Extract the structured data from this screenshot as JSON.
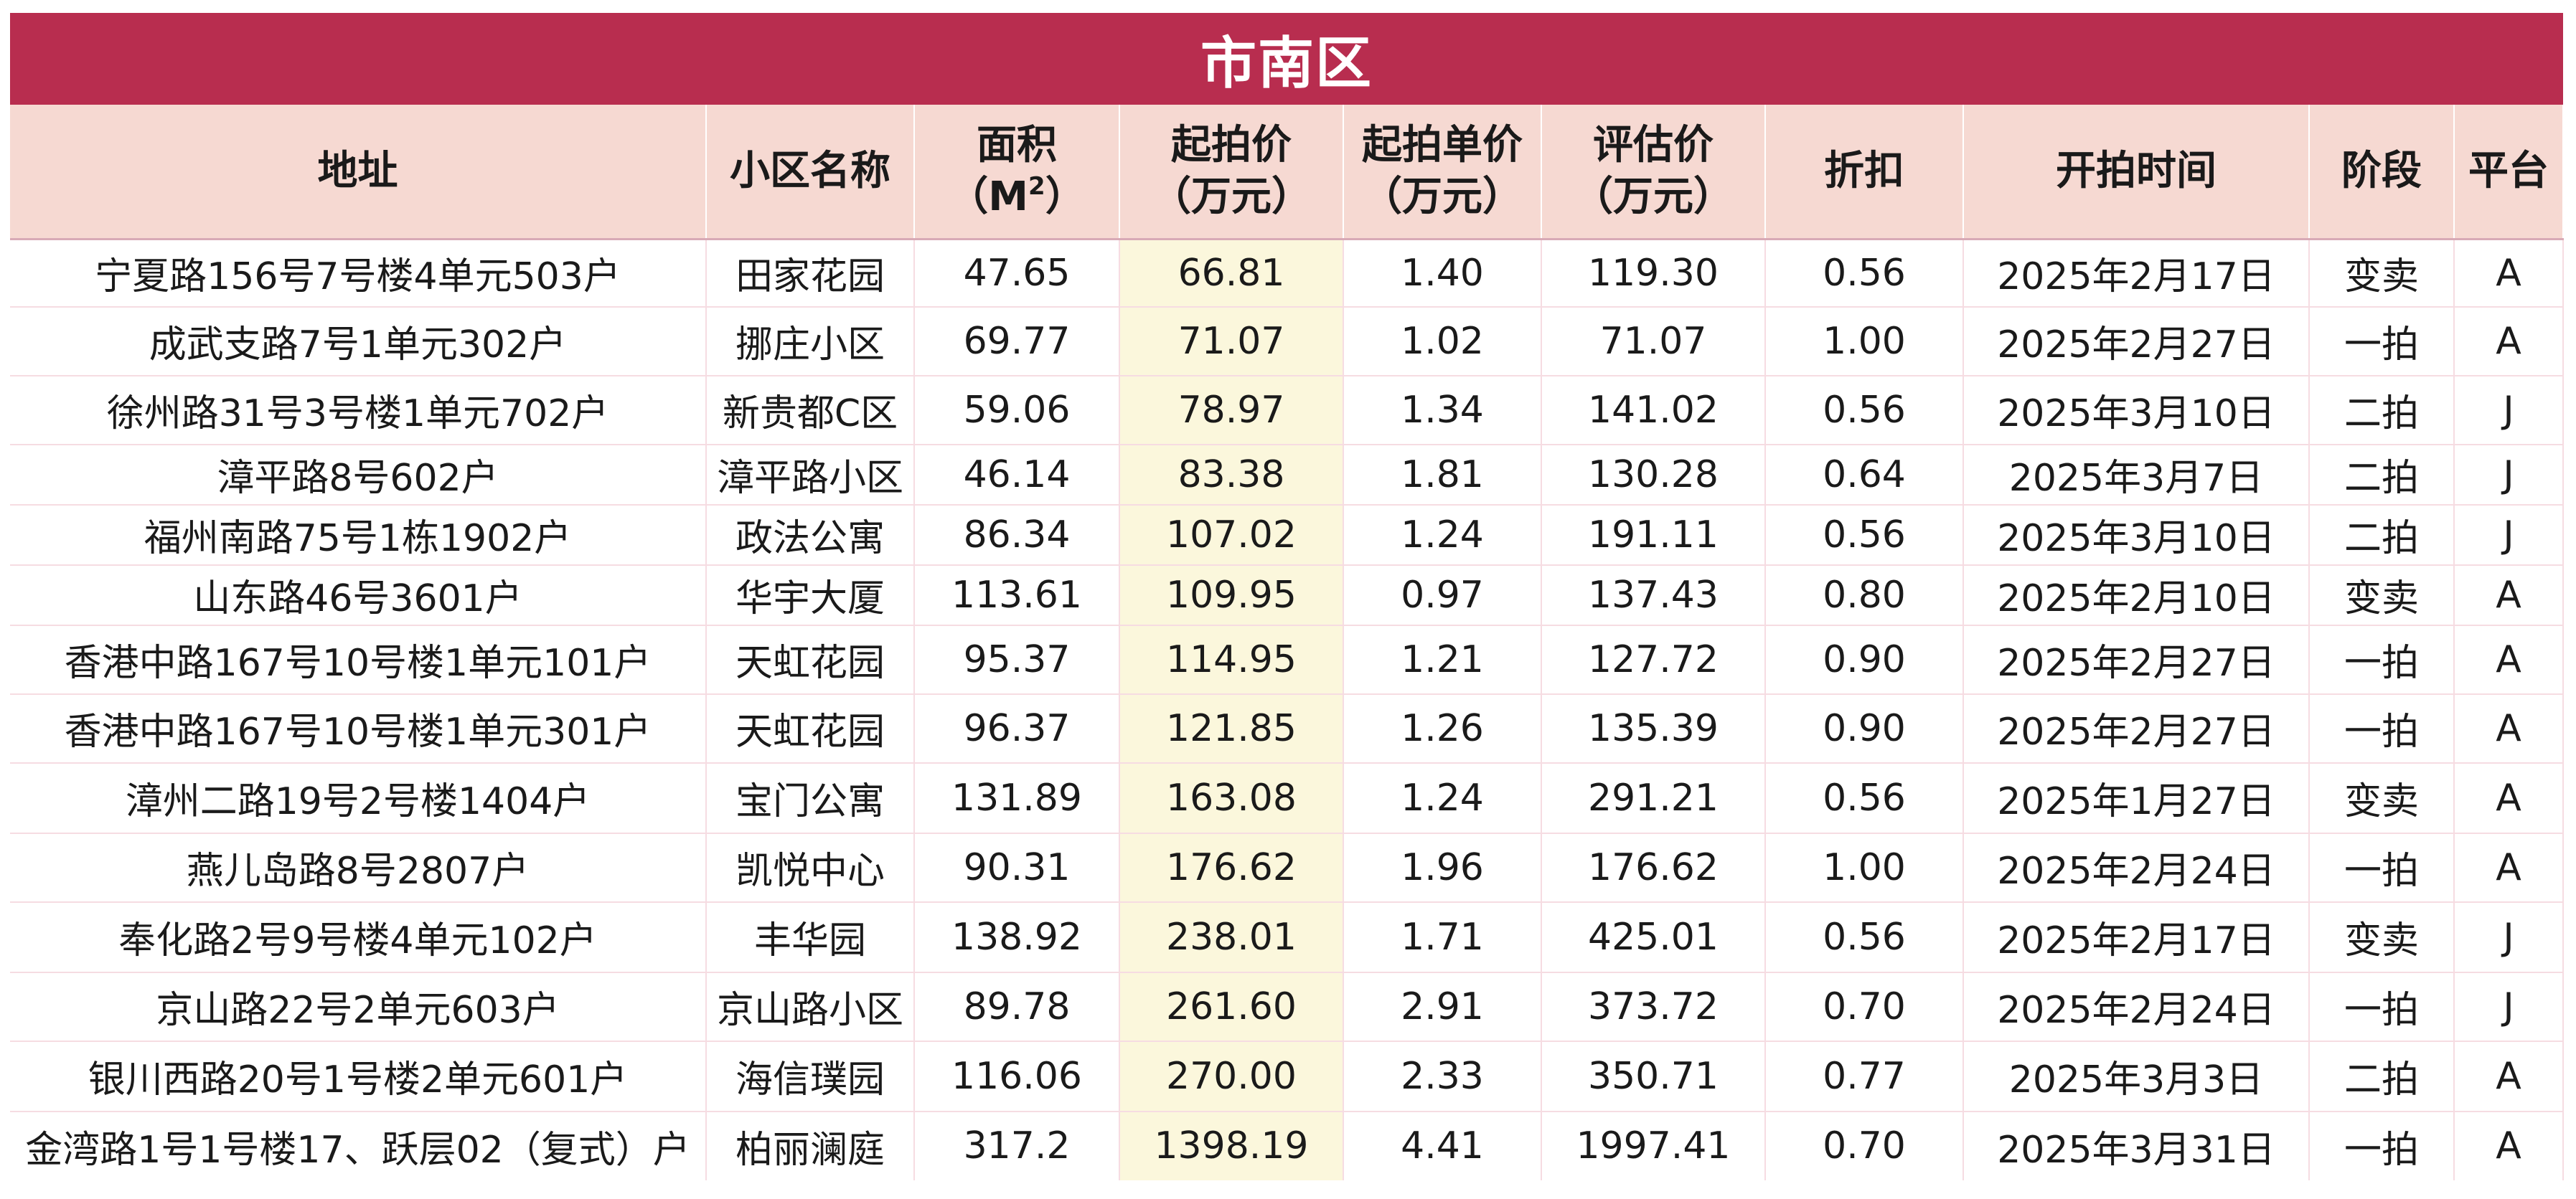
{
  "sheet": {
    "title": "市南区",
    "headers": {
      "address": "地址",
      "community": "小区名称",
      "area_l1": "面积",
      "area_l2": "（M",
      "area_sup": "2",
      "area_l3": "）",
      "price_l1": "起拍价",
      "price_l2": "（万元）",
      "unit_l1": "起拍单价",
      "unit_l2": "（万元）",
      "eval_l1": "评估价",
      "eval_l2": "（万元）",
      "discount": "折扣",
      "date": "开拍时间",
      "stage": "阶段",
      "platform": "平台"
    },
    "rows": [
      {
        "address": "宁夏路156号7号楼4单元503户",
        "community": "田家花园",
        "area": "47.65",
        "price": "66.81",
        "unit_price": "1.40",
        "eval": "119.30",
        "discount": "0.56",
        "date": "2025年2月17日",
        "stage": "变卖",
        "platform": "A"
      },
      {
        "address": "成武支路7号1单元302户",
        "community": "挪庄小区",
        "area": "69.77",
        "price": "71.07",
        "unit_price": "1.02",
        "eval": "71.07",
        "discount": "1.00",
        "date": "2025年2月27日",
        "stage": "一拍",
        "platform": "A"
      },
      {
        "address": "徐州路31号3号楼1单元702户",
        "community": "新贵都C区",
        "area": "59.06",
        "price": "78.97",
        "unit_price": "1.34",
        "eval": "141.02",
        "discount": "0.56",
        "date": "2025年3月10日",
        "stage": "二拍",
        "platform": "J"
      },
      {
        "address": "漳平路8号602户",
        "community": "漳平路小区",
        "area": "46.14",
        "price": "83.38",
        "unit_price": "1.81",
        "eval": "130.28",
        "discount": "0.64",
        "date": "2025年3月7日",
        "stage": "二拍",
        "platform": "J"
      },
      {
        "address": "福州南路75号1栋1902户",
        "community": "政法公寓",
        "area": "86.34",
        "price": "107.02",
        "unit_price": "1.24",
        "eval": "191.11",
        "discount": "0.56",
        "date": "2025年3月10日",
        "stage": "二拍",
        "platform": "J"
      },
      {
        "address": "山东路46号3601户",
        "community": "华宇大厦",
        "area": "113.61",
        "price": "109.95",
        "unit_price": "0.97",
        "eval": "137.43",
        "discount": "0.80",
        "date": "2025年2月10日",
        "stage": "变卖",
        "platform": "A"
      },
      {
        "address": "香港中路167号10号楼1单元101户",
        "community": "天虹花园",
        "area": "95.37",
        "price": "114.95",
        "unit_price": "1.21",
        "eval": "127.72",
        "discount": "0.90",
        "date": "2025年2月27日",
        "stage": "一拍",
        "platform": "A"
      },
      {
        "address": "香港中路167号10号楼1单元301户",
        "community": "天虹花园",
        "area": "96.37",
        "price": "121.85",
        "unit_price": "1.26",
        "eval": "135.39",
        "discount": "0.90",
        "date": "2025年2月27日",
        "stage": "一拍",
        "platform": "A"
      },
      {
        "address": "漳州二路19号2号楼1404户",
        "community": "宝门公寓",
        "area": "131.89",
        "price": "163.08",
        "unit_price": "1.24",
        "eval": "291.21",
        "discount": "0.56",
        "date": "2025年1月27日",
        "stage": "变卖",
        "platform": "A"
      },
      {
        "address": "燕儿岛路8号2807户",
        "community": "凯悦中心",
        "area": "90.31",
        "price": "176.62",
        "unit_price": "1.96",
        "eval": "176.62",
        "discount": "1.00",
        "date": "2025年2月24日",
        "stage": "一拍",
        "platform": "A"
      },
      {
        "address": "奉化路2号9号楼4单元102户",
        "community": "丰华园",
        "area": "138.92",
        "price": "238.01",
        "unit_price": "1.71",
        "eval": "425.01",
        "discount": "0.56",
        "date": "2025年2月17日",
        "stage": "变卖",
        "platform": "J"
      },
      {
        "address": "京山路22号2单元603户",
        "community": "京山路小区",
        "area": "89.78",
        "price": "261.60",
        "unit_price": "2.91",
        "eval": "373.72",
        "discount": "0.70",
        "date": "2025年2月24日",
        "stage": "一拍",
        "platform": "J"
      },
      {
        "address": "银川西路20号1号楼2单元601户",
        "community": "海信璞园",
        "area": "116.06",
        "price": "270.00",
        "unit_price": "2.33",
        "eval": "350.71",
        "discount": "0.77",
        "date": "2025年3月3日",
        "stage": "二拍",
        "platform": "A"
      },
      {
        "address": "金湾路1号1号楼17、跃层02（复式）户",
        "community": "柏丽澜庭",
        "area": "317.2",
        "price": "1398.19",
        "unit_price": "4.41",
        "eval": "1997.41",
        "discount": "0.70",
        "date": "2025年3月31日",
        "stage": "一拍",
        "platform": "A"
      }
    ],
    "colors": {
      "title_bg": "#b82d4f",
      "header_bg": "#f6d9d2",
      "price_column_bg": "#fbf7dc",
      "grid_line": "#f6dce2"
    }
  }
}
